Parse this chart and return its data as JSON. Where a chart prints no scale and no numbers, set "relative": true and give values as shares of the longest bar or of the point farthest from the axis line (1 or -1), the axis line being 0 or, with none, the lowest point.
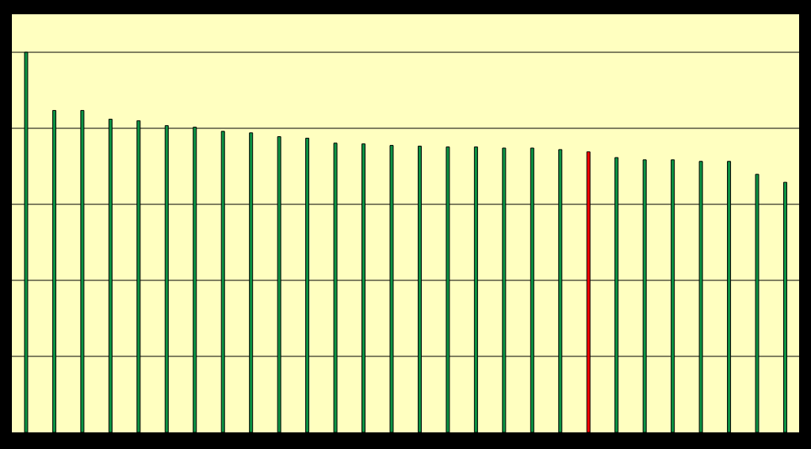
{
  "chart_data": {
    "type": "bar",
    "relative": true,
    "grid": "y",
    "categories": [
      null,
      null,
      null,
      null,
      null,
      null,
      null,
      null,
      null,
      null,
      null,
      null,
      null,
      null,
      null,
      null,
      null,
      null,
      null,
      null,
      null,
      null,
      null,
      null,
      null,
      null,
      null,
      null
    ],
    "values": [
      1.0,
      0.847,
      0.847,
      0.824,
      0.82,
      0.807,
      0.803,
      0.792,
      0.788,
      0.778,
      0.774,
      0.761,
      0.759,
      0.755,
      0.753,
      0.751,
      0.751,
      0.748,
      0.748,
      0.744,
      0.738,
      0.723,
      0.717,
      0.717,
      0.713,
      0.713,
      0.679,
      0.658
    ],
    "colors": [
      "#0c9444",
      "#0c9444",
      "#0c9444",
      "#0c9444",
      "#0c9444",
      "#0c9444",
      "#0c9444",
      "#0c9444",
      "#0c9444",
      "#0c9444",
      "#0c9444",
      "#0c9444",
      "#0c9444",
      "#0c9444",
      "#0c9444",
      "#0c9444",
      "#0c9444",
      "#0c9444",
      "#0c9444",
      "#0c9444",
      "#ff0000",
      "#0c9444",
      "#0c9444",
      "#0c9444",
      "#0c9444",
      "#0c9444",
      "#0c9444",
      "#0c9444"
    ]
  }
}
